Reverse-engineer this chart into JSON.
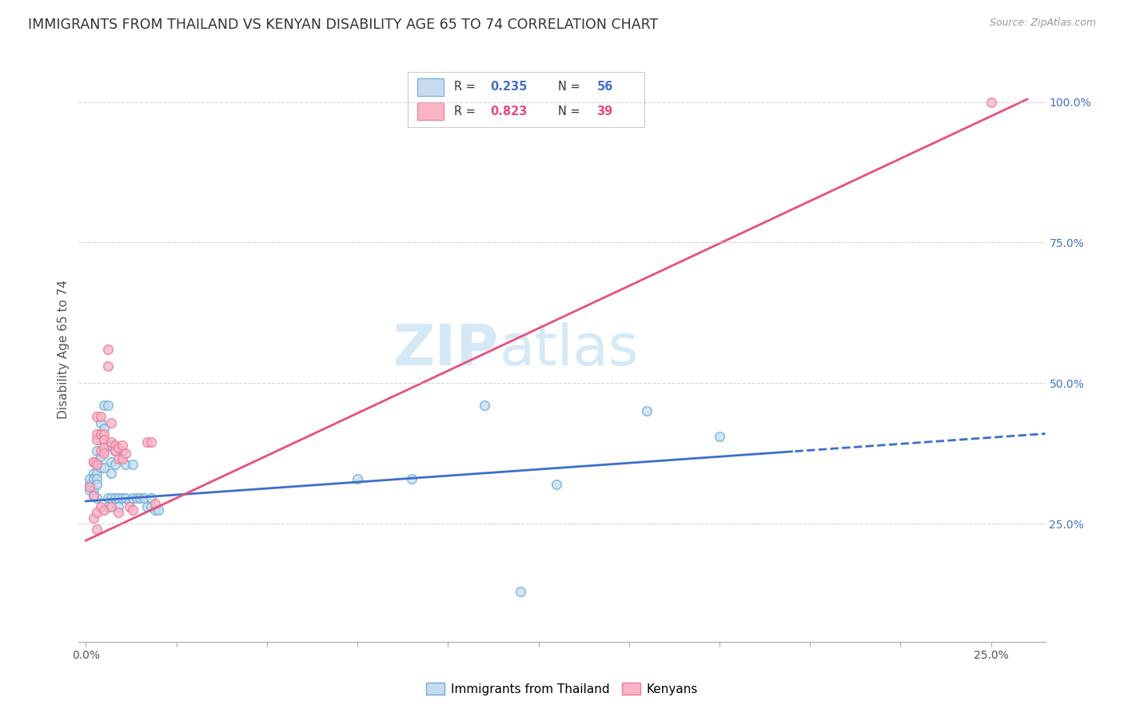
{
  "title": "IMMIGRANTS FROM THAILAND VS KENYAN DISABILITY AGE 65 TO 74 CORRELATION CHART",
  "source": "Source: ZipAtlas.com",
  "ylabel_label": "Disability Age 65 to 74",
  "xlim": [
    -0.002,
    0.265
  ],
  "ylim": [
    0.04,
    1.08
  ],
  "x_tick_pos": [
    0.0,
    0.025,
    0.05,
    0.075,
    0.1,
    0.125,
    0.15,
    0.175,
    0.2,
    0.225,
    0.25
  ],
  "x_tick_labels_show": {
    "0.0": "0.0%",
    "0.25": "25.0%"
  },
  "y_tick_pos": [
    0.25,
    0.5,
    0.75,
    1.0
  ],
  "y_tick_labels": [
    "25.0%",
    "50.0%",
    "75.0%",
    "100.0%"
  ],
  "thailand_scatter": [
    [
      0.001,
      0.32
    ],
    [
      0.001,
      0.33
    ],
    [
      0.001,
      0.31
    ],
    [
      0.002,
      0.34
    ],
    [
      0.002,
      0.33
    ],
    [
      0.002,
      0.31
    ],
    [
      0.002,
      0.3
    ],
    [
      0.003,
      0.38
    ],
    [
      0.003,
      0.36
    ],
    [
      0.003,
      0.34
    ],
    [
      0.003,
      0.33
    ],
    [
      0.003,
      0.32
    ],
    [
      0.003,
      0.295
    ],
    [
      0.004,
      0.43
    ],
    [
      0.004,
      0.4
    ],
    [
      0.004,
      0.37
    ],
    [
      0.004,
      0.35
    ],
    [
      0.005,
      0.46
    ],
    [
      0.005,
      0.42
    ],
    [
      0.005,
      0.38
    ],
    [
      0.005,
      0.35
    ],
    [
      0.006,
      0.46
    ],
    [
      0.006,
      0.39
    ],
    [
      0.006,
      0.295
    ],
    [
      0.006,
      0.28
    ],
    [
      0.007,
      0.39
    ],
    [
      0.007,
      0.36
    ],
    [
      0.007,
      0.34
    ],
    [
      0.007,
      0.295
    ],
    [
      0.008,
      0.38
    ],
    [
      0.008,
      0.355
    ],
    [
      0.008,
      0.295
    ],
    [
      0.009,
      0.295
    ],
    [
      0.009,
      0.28
    ],
    [
      0.01,
      0.38
    ],
    [
      0.01,
      0.295
    ],
    [
      0.011,
      0.355
    ],
    [
      0.011,
      0.295
    ],
    [
      0.012,
      0.29
    ],
    [
      0.013,
      0.355
    ],
    [
      0.013,
      0.295
    ],
    [
      0.014,
      0.295
    ],
    [
      0.015,
      0.295
    ],
    [
      0.016,
      0.295
    ],
    [
      0.017,
      0.28
    ],
    [
      0.018,
      0.295
    ],
    [
      0.018,
      0.28
    ],
    [
      0.019,
      0.275
    ],
    [
      0.02,
      0.275
    ],
    [
      0.075,
      0.33
    ],
    [
      0.09,
      0.33
    ],
    [
      0.11,
      0.46
    ],
    [
      0.13,
      0.32
    ],
    [
      0.155,
      0.45
    ],
    [
      0.175,
      0.405
    ],
    [
      0.12,
      0.13
    ]
  ],
  "kenyan_scatter": [
    [
      0.001,
      0.315
    ],
    [
      0.002,
      0.36
    ],
    [
      0.002,
      0.3
    ],
    [
      0.002,
      0.36
    ],
    [
      0.002,
      0.26
    ],
    [
      0.003,
      0.44
    ],
    [
      0.003,
      0.41
    ],
    [
      0.003,
      0.4
    ],
    [
      0.003,
      0.355
    ],
    [
      0.003,
      0.27
    ],
    [
      0.003,
      0.24
    ],
    [
      0.004,
      0.44
    ],
    [
      0.004,
      0.41
    ],
    [
      0.004,
      0.38
    ],
    [
      0.004,
      0.28
    ],
    [
      0.005,
      0.41
    ],
    [
      0.005,
      0.4
    ],
    [
      0.005,
      0.385
    ],
    [
      0.005,
      0.375
    ],
    [
      0.005,
      0.275
    ],
    [
      0.006,
      0.56
    ],
    [
      0.006,
      0.53
    ],
    [
      0.007,
      0.43
    ],
    [
      0.007,
      0.395
    ],
    [
      0.007,
      0.28
    ],
    [
      0.008,
      0.39
    ],
    [
      0.008,
      0.38
    ],
    [
      0.009,
      0.385
    ],
    [
      0.009,
      0.365
    ],
    [
      0.009,
      0.27
    ],
    [
      0.01,
      0.39
    ],
    [
      0.01,
      0.365
    ],
    [
      0.011,
      0.375
    ],
    [
      0.012,
      0.28
    ],
    [
      0.013,
      0.275
    ],
    [
      0.017,
      0.395
    ],
    [
      0.018,
      0.395
    ],
    [
      0.019,
      0.285
    ],
    [
      0.25,
      1.0
    ]
  ],
  "thailand_line_x0": 0.0,
  "thailand_line_x1": 0.265,
  "thailand_line_y0": 0.29,
  "thailand_line_y1": 0.41,
  "thailand_line_dashed_start": 0.195,
  "kenyan_line_x0": 0.0,
  "kenyan_line_x1": 0.26,
  "kenyan_line_y0": 0.22,
  "kenyan_line_y1": 1.005,
  "scatter_marker_size": 70,
  "scatter_alpha": 0.75,
  "scatter_edgewidth": 1.2,
  "scatter_edgecolor_thailand": "#6baed6",
  "scatter_edgecolor_kenyan": "#e87a9a",
  "scatter_facecolor_thailand": "#c6dbef",
  "scatter_facecolor_kenyan": "#fbb4c6",
  "line_color_thailand": "#3c6fcd",
  "line_color_kenyan": "#e8507a",
  "watermark_zip": "ZIP",
  "watermark_atlas": "atlas",
  "watermark_color": "#d5e8f5",
  "watermark_fontsize": 52,
  "background_color": "#ffffff",
  "grid_color": "#cccccc",
  "title_fontsize": 12.5,
  "axis_label_fontsize": 11,
  "tick_fontsize": 10,
  "source_fontsize": 9
}
